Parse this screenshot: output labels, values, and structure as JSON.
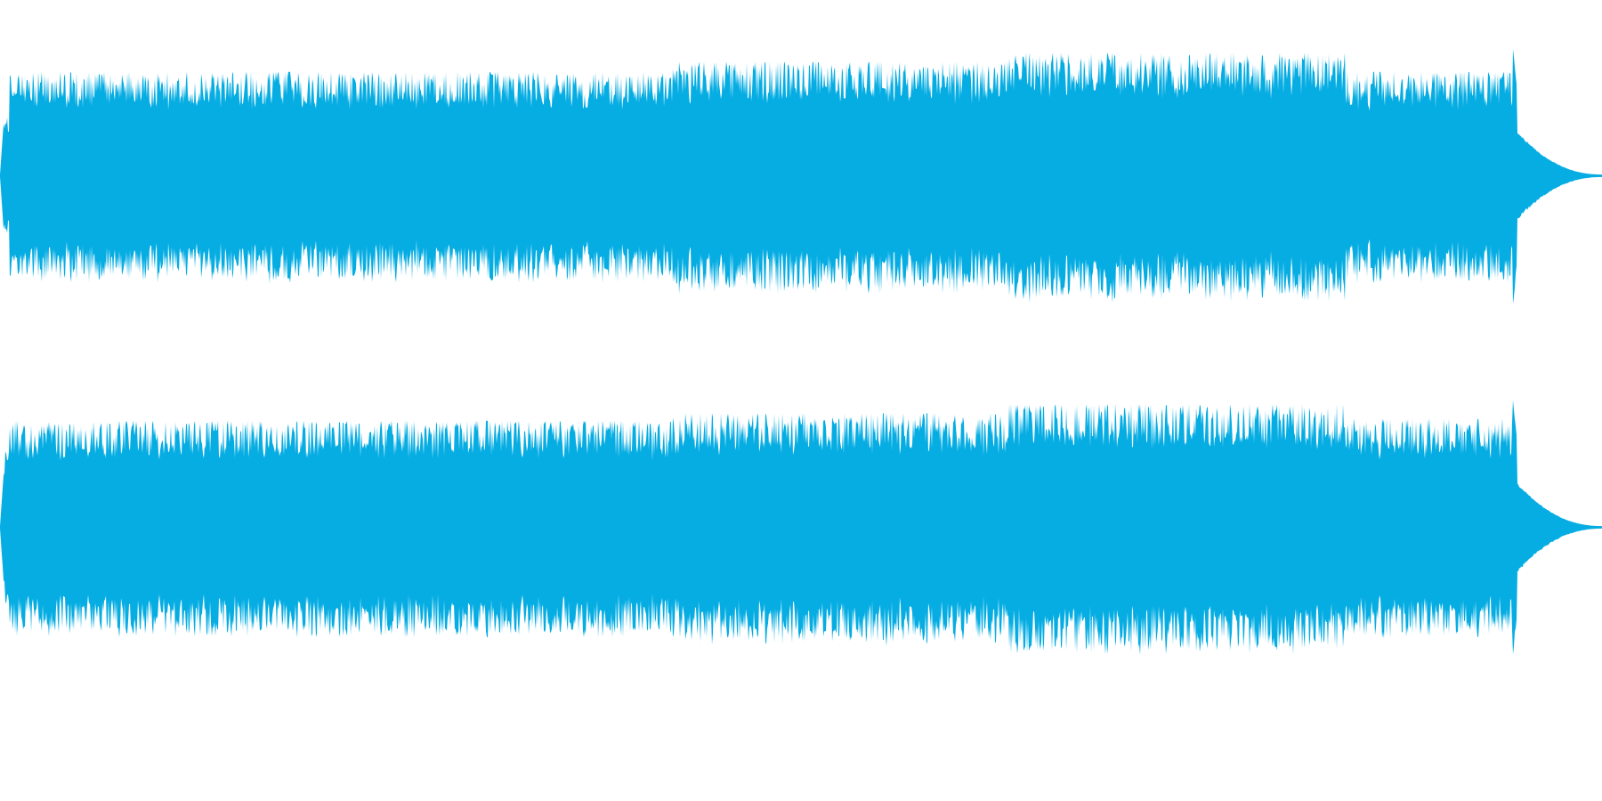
{
  "waveform": {
    "color": "#06ADE3",
    "background": "#FFFFFF",
    "channels": [
      {
        "name": "",
        "segments": [
          {
            "start": 0.0,
            "end": 0.002,
            "amp": 0.02
          },
          {
            "start": 0.002,
            "end": 0.006,
            "amp": 0.5
          },
          {
            "start": 0.006,
            "end": 0.42,
            "amp": 0.82
          },
          {
            "start": 0.42,
            "end": 0.63,
            "amp": 0.9
          },
          {
            "start": 0.63,
            "end": 0.84,
            "amp": 0.97
          },
          {
            "start": 0.84,
            "end": 0.944,
            "amp": 0.82
          },
          {
            "start": 0.944,
            "end": 1.0,
            "amp": 0.0
          }
        ]
      },
      {
        "name": "",
        "segments": [
          {
            "start": 0.0,
            "end": 0.002,
            "amp": 0.02
          },
          {
            "start": 0.002,
            "end": 0.006,
            "amp": 0.6
          },
          {
            "start": 0.006,
            "end": 0.42,
            "amp": 0.84
          },
          {
            "start": 0.42,
            "end": 0.63,
            "amp": 0.9
          },
          {
            "start": 0.63,
            "end": 0.84,
            "amp": 0.97
          },
          {
            "start": 0.84,
            "end": 0.944,
            "amp": 0.86
          },
          {
            "start": 0.944,
            "end": 1.0,
            "amp": 0.0
          }
        ]
      }
    ]
  }
}
